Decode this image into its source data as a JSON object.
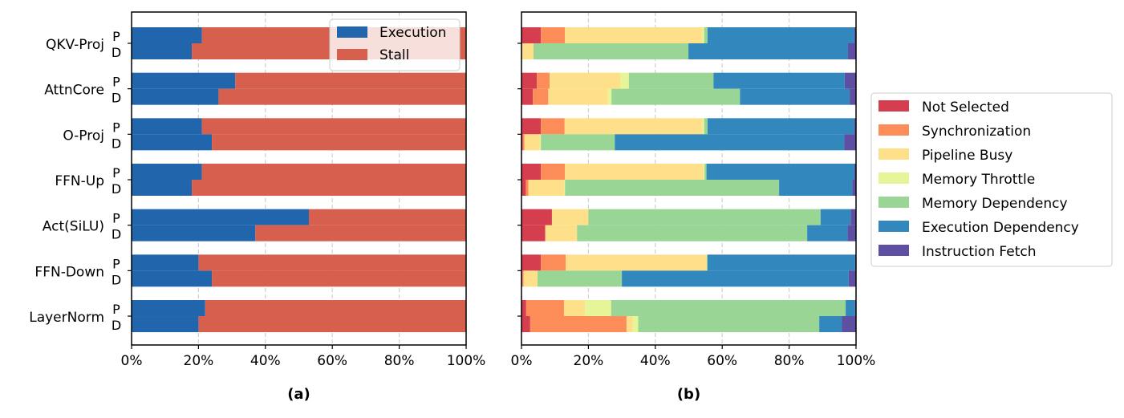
{
  "chart_data": [
    {
      "type": "bar",
      "orientation": "horizontal",
      "stacked": true,
      "xlabel": "(a)",
      "xlim": [
        0,
        100
      ],
      "x_ticks": [
        "0%",
        "20%",
        "40%",
        "60%",
        "80%",
        "100%"
      ],
      "grid": "vertical dashed",
      "legend_position": "top-right",
      "categories": [
        "QKV-Proj",
        "AttnCore",
        "O-Proj",
        "FFN-Up",
        "Act(SiLU)",
        "FFN-Down",
        "LayerNorm"
      ],
      "sub_labels": [
        "P",
        "D"
      ],
      "series": [
        {
          "name": "Execution",
          "color": "#2166ac",
          "P": [
            21,
            31,
            21,
            21,
            53,
            20,
            22
          ],
          "D": [
            18,
            26,
            24,
            18,
            37,
            24,
            20
          ]
        },
        {
          "name": "Stall",
          "color": "#d6604d",
          "P": [
            79,
            69,
            79,
            79,
            47,
            80,
            78
          ],
          "D": [
            82,
            74,
            76,
            82,
            63,
            76,
            80
          ]
        }
      ]
    },
    {
      "type": "bar",
      "orientation": "horizontal",
      "stacked": true,
      "xlabel": "(b)",
      "xlim": [
        0,
        100
      ],
      "x_ticks": [
        "0%",
        "20%",
        "40%",
        "60%",
        "80%",
        "100%"
      ],
      "grid": "vertical dashed",
      "legend_position": "right outside",
      "categories": [
        "QKV-Proj",
        "AttnCore",
        "O-Proj",
        "FFN-Up",
        "Act(SiLU)",
        "FFN-Down",
        "LayerNorm"
      ],
      "sub_labels": [
        "P",
        "D"
      ],
      "series": [
        {
          "name": "Not Selected",
          "color": "#d53e4f",
          "P": [
            5.8,
            4.6,
            5.8,
            5.8,
            9.1,
            5.8,
            1.4
          ],
          "D": [
            0.2,
            3.4,
            0.4,
            1.3,
            7.1,
            0.3,
            2.6
          ]
        },
        {
          "name": "Synchronization",
          "color": "#fc8d59",
          "P": [
            7.2,
            3.8,
            7.1,
            7.2,
            0,
            7.4,
            11.3
          ],
          "D": [
            0,
            4.6,
            0.5,
            0.8,
            0,
            0.3,
            28.8
          ]
        },
        {
          "name": "Pipeline Busy",
          "color": "#fee08b",
          "P": [
            41.1,
            21.1,
            41.2,
            41.4,
            10.9,
            42.2,
            6.3
          ],
          "D": [
            3.4,
            17.8,
            4.6,
            10.7,
            9.5,
            4.2,
            1.9
          ]
        },
        {
          "name": "Memory Throttle",
          "color": "#e6f598",
          "P": [
            0.5,
            2.6,
            0.5,
            0.3,
            0,
            0,
            7.8
          ],
          "D": [
            0,
            1.1,
            0.3,
            0.2,
            0,
            0,
            1.6
          ]
        },
        {
          "name": "Memory Dependency",
          "color": "#99d594",
          "P": [
            1.0,
            25.3,
            1.0,
            0.6,
            69.4,
            0.2,
            70.1
          ],
          "D": [
            46.3,
            38.4,
            22.1,
            64.0,
            68.8,
            25.2,
            54.1
          ]
        },
        {
          "name": "Execution Dependency",
          "color": "#3288bd",
          "P": [
            43.9,
            39.2,
            43.9,
            44.2,
            9.0,
            44.1,
            2.8
          ],
          "D": [
            47.7,
            32.8,
            68.6,
            21.9,
            12.1,
            67.8,
            6.8
          ]
        },
        {
          "name": "Instruction Fetch",
          "color": "#5e4fa2",
          "P": [
            0.5,
            3.4,
            0.5,
            0.5,
            1.6,
            0.3,
            0.3
          ],
          "D": [
            2.4,
            2.0,
            3.6,
            1.0,
            2.5,
            2.2,
            4.2
          ]
        }
      ]
    }
  ]
}
